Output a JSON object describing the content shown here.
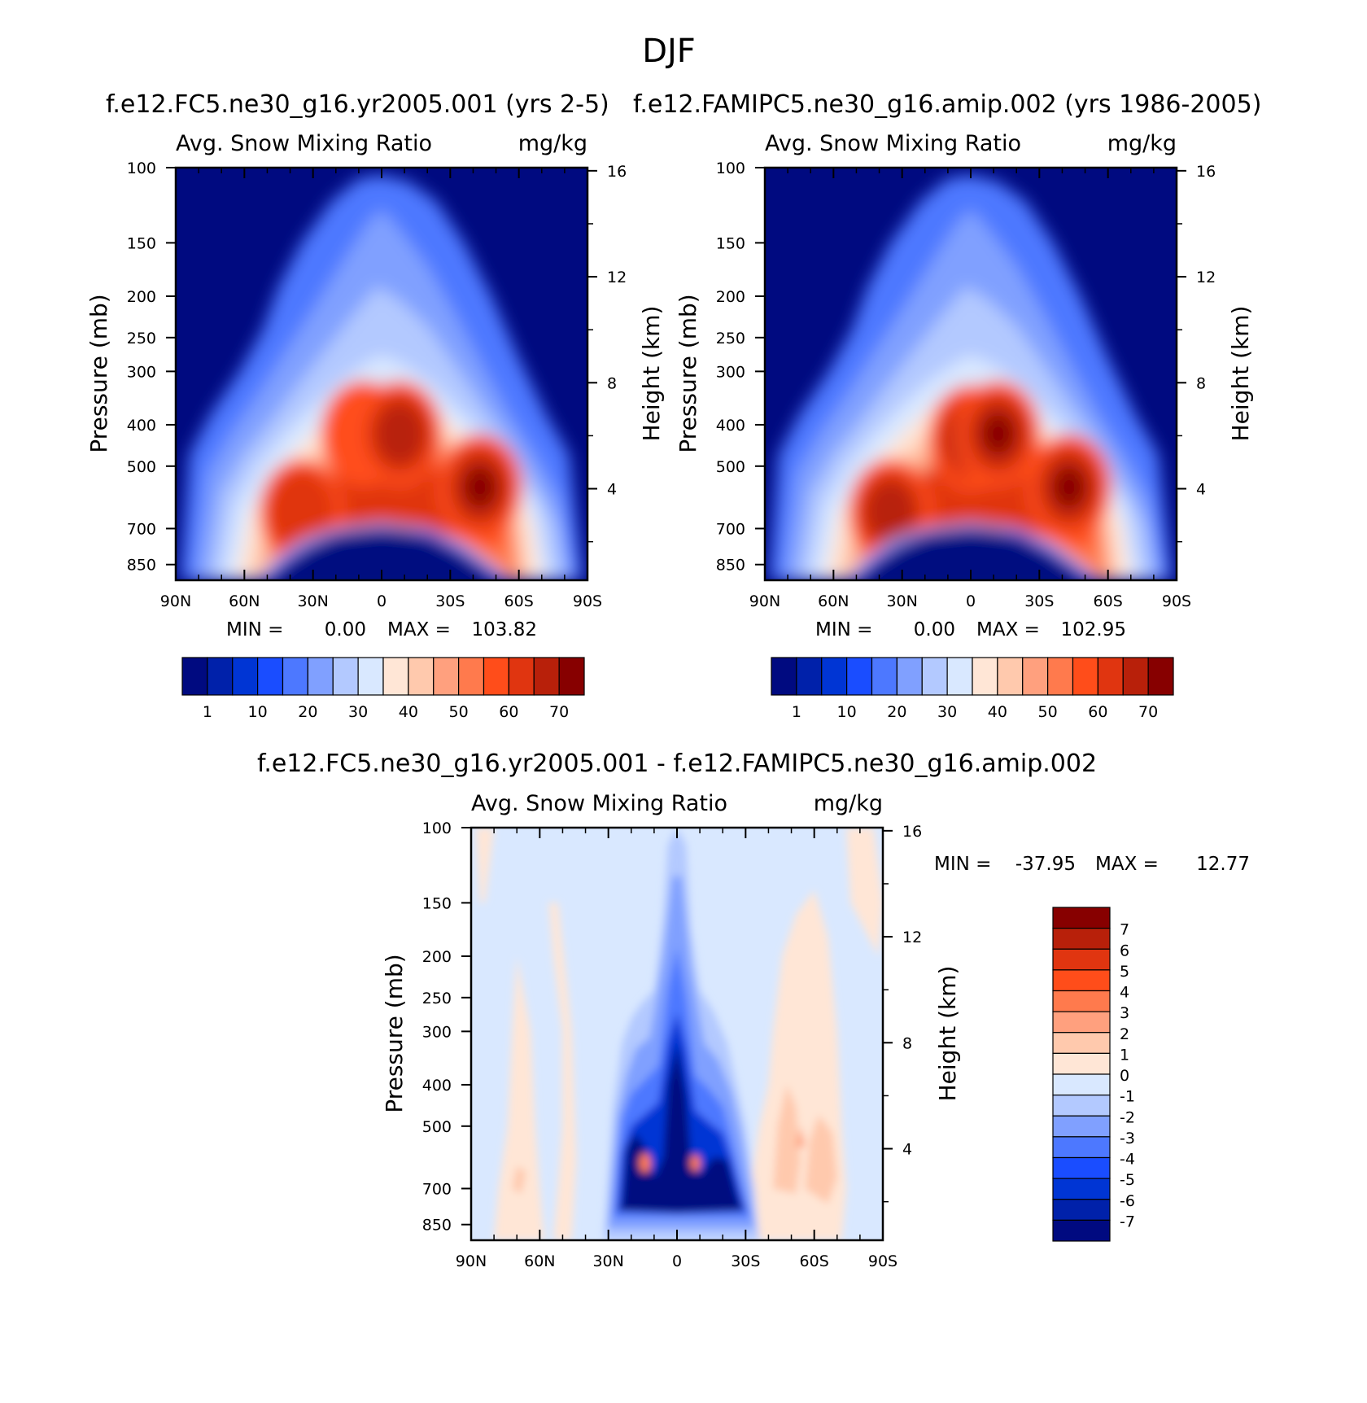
{
  "season": "DJF",
  "colors": {
    "main": [
      "#000a80",
      "#0021aa",
      "#0035d4",
      "#1a4dff",
      "#4d78ff",
      "#80a0ff",
      "#b3c9ff",
      "#d9e8ff",
      "#ffe6d6",
      "#ffc9ad",
      "#ffa07e",
      "#ff7a4d",
      "#ff4d1a",
      "#e03510",
      "#b8200a",
      "#870000"
    ],
    "diff": [
      "#000a80",
      "#0021aa",
      "#0035d4",
      "#1a4dff",
      "#4d78ff",
      "#80a0ff",
      "#b3c9ff",
      "#d9e8ff",
      "#ffe6d6",
      "#ffc9ad",
      "#ffa07e",
      "#ff7a4d",
      "#ff4d1a",
      "#e03510",
      "#b8200a",
      "#870000"
    ]
  },
  "chart_data": [
    {
      "type": "heatmap",
      "title": "f.e12.FC5.ne30_g16.yr2005.001 (yrs 2-5)",
      "left_label": "Avg. Snow Mixing Ratio",
      "right_label": "mg/kg",
      "ylabel": "Pressure (mb)",
      "ylabel_right": "Height (km)",
      "x_ticks": [
        "90N",
        "60N",
        "30N",
        "0",
        "30S",
        "60S",
        "90S"
      ],
      "y_ticks": [
        "100",
        "150",
        "200",
        "250",
        "300",
        "400",
        "500",
        "700",
        "850"
      ],
      "y_ticks_right": [
        "16",
        "12",
        "8",
        "4"
      ],
      "min_label": "MIN =",
      "min_value": "0.00",
      "max_label": "MAX =",
      "max_value": "103.82",
      "colorbar_labels": [
        "1",
        "10",
        "20",
        "30",
        "40",
        "50",
        "60",
        "70"
      ],
      "peaks": [
        {
          "lat": 35,
          "p": 640,
          "value": 75
        },
        {
          "lat": 8,
          "p": 420,
          "value": 65
        },
        {
          "lat": -8,
          "p": 420,
          "value": 78
        },
        {
          "lat": -43,
          "p": 560,
          "value": 103.82
        }
      ]
    },
    {
      "type": "heatmap",
      "title": "f.e12.FAMIPC5.ne30_g16.amip.002 (yrs 1986-2005)",
      "left_label": "Avg. Snow Mixing Ratio",
      "right_label": "mg/kg",
      "ylabel": "Pressure (mb)",
      "ylabel_right": "Height (km)",
      "x_ticks": [
        "90N",
        "60N",
        "30N",
        "0",
        "30S",
        "60S",
        "90S"
      ],
      "y_ticks": [
        "100",
        "150",
        "200",
        "250",
        "300",
        "400",
        "500",
        "700",
        "850"
      ],
      "y_ticks_right": [
        "16",
        "12",
        "8",
        "4"
      ],
      "min_label": "MIN =",
      "min_value": "0.00",
      "max_label": "MAX =",
      "max_value": "102.95",
      "colorbar_labels": [
        "1",
        "10",
        "20",
        "30",
        "40",
        "50",
        "60",
        "70"
      ],
      "peaks": [
        {
          "lat": 35,
          "p": 640,
          "value": 80
        },
        {
          "lat": 0,
          "p": 430,
          "value": 80
        },
        {
          "lat": -12,
          "p": 420,
          "value": 85
        },
        {
          "lat": -43,
          "p": 560,
          "value": 102.95
        }
      ]
    },
    {
      "type": "heatmap",
      "title": "f.e12.FC5.ne30_g16.yr2005.001 - f.e12.FAMIPC5.ne30_g16.amip.002",
      "left_label": "Avg. Snow Mixing Ratio",
      "right_label": "mg/kg",
      "ylabel": "Pressure (mb)",
      "ylabel_right": "Height (km)",
      "x_ticks": [
        "90N",
        "60N",
        "30N",
        "0",
        "30S",
        "60S",
        "90S"
      ],
      "y_ticks": [
        "100",
        "150",
        "200",
        "250",
        "300",
        "400",
        "500",
        "700",
        "850"
      ],
      "y_ticks_right": [
        "16",
        "12",
        "8",
        "4"
      ],
      "min_label": "MIN =",
      "min_value": "-37.95",
      "max_label": "MAX =",
      "max_value": "12.77",
      "colorbar_labels": [
        "7",
        "6",
        "5",
        "4",
        "3",
        "2",
        "1",
        "0",
        "-1",
        "-2",
        "-3",
        "-4",
        "-5",
        "-6",
        "-7"
      ]
    }
  ]
}
